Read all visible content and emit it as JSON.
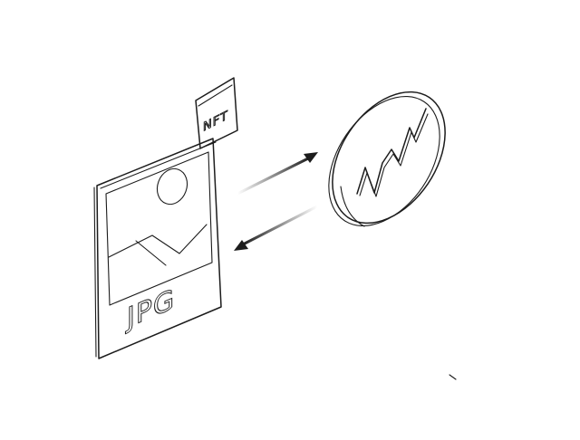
{
  "jpg_card": {
    "label": "JPG",
    "badge": "NFT",
    "image_icon": "landscape-photo-icon"
  },
  "coin": {
    "icon": "chart-zigzag-icon"
  },
  "exchange": {
    "icon": "bidirectional-arrows-icon"
  },
  "colors": {
    "ink": "#1c1c1c",
    "background": "#ffffff"
  }
}
